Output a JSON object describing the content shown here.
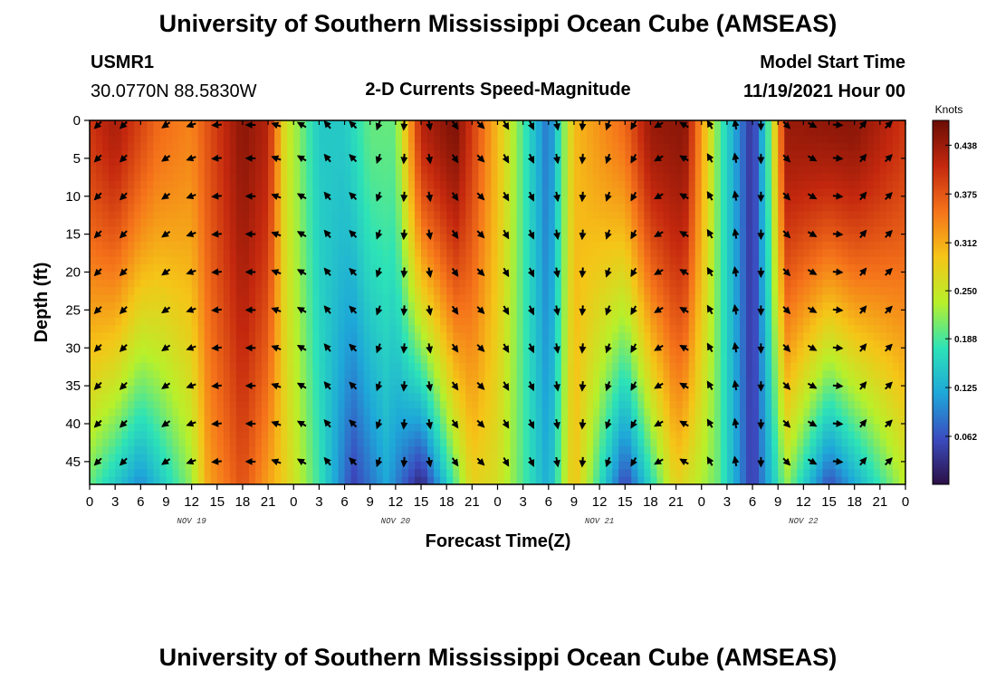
{
  "header": {
    "title": "University of Southern Mississippi Ocean Cube (AMSEAS)",
    "station": "USMR1",
    "location": "30.0770N  88.5830W",
    "plot_title": "2-D Currents Speed-Magnitude",
    "model_start_label": "Model Start Time",
    "model_start_value": "11/19/2021 Hour 00"
  },
  "footer": {
    "title": "University of Southern Mississippi Ocean Cube (AMSEAS)"
  },
  "chart_data": {
    "type": "heatmap",
    "title": "2-D Currents Speed-Magnitude",
    "xlabel": "Forecast Time(Z)",
    "ylabel": "Depth (ft)",
    "x_hours_range": [
      0,
      96
    ],
    "x_tick_hours": [
      0,
      3,
      6,
      9,
      12,
      15,
      18,
      21,
      24,
      27,
      30,
      33,
      36,
      39,
      42,
      45,
      48,
      51,
      54,
      57,
      60,
      63,
      66,
      69,
      72,
      75,
      78,
      81,
      84,
      87,
      90,
      93,
      96
    ],
    "x_tick_labels": [
      "0",
      "3",
      "6",
      "9",
      "12",
      "15",
      "18",
      "21",
      "0",
      "3",
      "6",
      "9",
      "12",
      "15",
      "18",
      "21",
      "0",
      "3",
      "6",
      "9",
      "12",
      "15",
      "18",
      "21",
      "0",
      "3",
      "6",
      "9",
      "12",
      "15",
      "18",
      "21",
      "0"
    ],
    "day_labels": [
      {
        "hour": 12,
        "label": "NOV 19"
      },
      {
        "hour": 36,
        "label": "NOV 20"
      },
      {
        "hour": 60,
        "label": "NOV 21"
      },
      {
        "hour": 84,
        "label": "NOV 22"
      }
    ],
    "ylim": [
      0,
      48
    ],
    "y_ticks": [
      0,
      5,
      10,
      15,
      20,
      25,
      30,
      35,
      40,
      45
    ],
    "y_tick_labels": [
      "0",
      "5",
      "10",
      "15",
      "20",
      "25",
      "30",
      "35",
      "40",
      "45"
    ],
    "colorbar": {
      "unit": "Knots",
      "range": [
        0,
        0.47
      ],
      "ticks": [
        0.062,
        0.125,
        0.188,
        0.25,
        0.312,
        0.375,
        0.438
      ],
      "tick_labels": [
        "0.062",
        "0.125",
        "0.188",
        "0.250",
        "0.312",
        "0.375",
        "0.438"
      ]
    },
    "speed_profile_surface_knots": [
      {
        "hour": 0,
        "v": 0.4
      },
      {
        "hour": 3,
        "v": 0.43
      },
      {
        "hour": 8,
        "v": 0.36
      },
      {
        "hour": 12,
        "v": 0.34
      },
      {
        "hour": 14,
        "v": 0.38
      },
      {
        "hour": 18,
        "v": 0.45
      },
      {
        "hour": 21,
        "v": 0.42
      },
      {
        "hour": 23,
        "v": 0.26
      },
      {
        "hour": 27,
        "v": 0.15
      },
      {
        "hour": 30,
        "v": 0.15
      },
      {
        "hour": 33,
        "v": 0.2
      },
      {
        "hour": 36,
        "v": 0.2
      },
      {
        "hour": 39,
        "v": 0.42
      },
      {
        "hour": 43,
        "v": 0.46
      },
      {
        "hour": 48,
        "v": 0.3
      },
      {
        "hour": 54,
        "v": 0.08
      },
      {
        "hour": 57,
        "v": 0.3
      },
      {
        "hour": 63,
        "v": 0.36
      },
      {
        "hour": 66,
        "v": 0.44
      },
      {
        "hour": 70,
        "v": 0.45
      },
      {
        "hour": 74,
        "v": 0.2
      },
      {
        "hour": 78,
        "v": 0.03
      },
      {
        "hour": 80,
        "v": 0.2
      },
      {
        "hour": 82,
        "v": 0.44
      },
      {
        "hour": 90,
        "v": 0.45
      },
      {
        "hour": 96,
        "v": 0.4
      }
    ],
    "speed_profile_bottom_knots": [
      {
        "hour": 0,
        "v": 0.2
      },
      {
        "hour": 6,
        "v": 0.1
      },
      {
        "hour": 12,
        "v": 0.22
      },
      {
        "hour": 14,
        "v": 0.32
      },
      {
        "hour": 18,
        "v": 0.38
      },
      {
        "hour": 23,
        "v": 0.28
      },
      {
        "hour": 27,
        "v": 0.18
      },
      {
        "hour": 31,
        "v": 0.05
      },
      {
        "hour": 35,
        "v": 0.12
      },
      {
        "hour": 39,
        "v": 0.02
      },
      {
        "hour": 45,
        "v": 0.28
      },
      {
        "hour": 48,
        "v": 0.26
      },
      {
        "hour": 54,
        "v": 0.12
      },
      {
        "hour": 57,
        "v": 0.3
      },
      {
        "hour": 63,
        "v": 0.05
      },
      {
        "hour": 69,
        "v": 0.28
      },
      {
        "hour": 74,
        "v": 0.2
      },
      {
        "hour": 78,
        "v": 0.04
      },
      {
        "hour": 82,
        "v": 0.22
      },
      {
        "hour": 87,
        "v": 0.06
      },
      {
        "hour": 93,
        "v": 0.18
      },
      {
        "hour": 96,
        "v": 0.24
      }
    ],
    "arrow_depths_ft": [
      0,
      5,
      10,
      15,
      20,
      25,
      30,
      35,
      40,
      45
    ],
    "arrow_direction_deg_by_time": [
      {
        "hour": 1,
        "deg": 225
      },
      {
        "hour": 4,
        "deg": 225
      },
      {
        "hour": 9,
        "deg": 235
      },
      {
        "hour": 12,
        "deg": 250
      },
      {
        "hour": 15,
        "deg": 265
      },
      {
        "hour": 19,
        "deg": 270
      },
      {
        "hour": 22,
        "deg": 290
      },
      {
        "hour": 25,
        "deg": 300
      },
      {
        "hour": 28,
        "deg": 320
      },
      {
        "hour": 31,
        "deg": 315
      },
      {
        "hour": 34,
        "deg": 200
      },
      {
        "hour": 37,
        "deg": 185
      },
      {
        "hour": 40,
        "deg": 170
      },
      {
        "hour": 43,
        "deg": 145
      },
      {
        "hour": 46,
        "deg": 135
      },
      {
        "hour": 49,
        "deg": 150
      },
      {
        "hour": 52,
        "deg": 155
      },
      {
        "hour": 55,
        "deg": 170
      },
      {
        "hour": 58,
        "deg": 185
      },
      {
        "hour": 61,
        "deg": 200
      },
      {
        "hour": 64,
        "deg": 210
      },
      {
        "hour": 67,
        "deg": 240
      },
      {
        "hour": 70,
        "deg": 300
      },
      {
        "hour": 73,
        "deg": 330
      },
      {
        "hour": 76,
        "deg": 350
      },
      {
        "hour": 79,
        "deg": 180
      },
      {
        "hour": 82,
        "deg": 135
      },
      {
        "hour": 85,
        "deg": 120
      },
      {
        "hour": 88,
        "deg": 95
      },
      {
        "hour": 91,
        "deg": 40
      },
      {
        "hour": 94,
        "deg": 45
      }
    ]
  },
  "colors": {
    "colormap": [
      "#2b0f45",
      "#3b4cc0",
      "#1ea7d9",
      "#2de3b7",
      "#b8f02a",
      "#f5c518",
      "#f5731a",
      "#c4280e",
      "#6b0d05"
    ],
    "arrow": "#000000",
    "axis": "#000000"
  }
}
